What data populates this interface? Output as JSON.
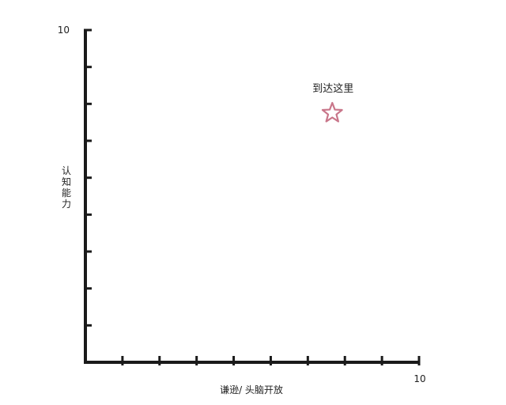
{
  "chart_data": {
    "type": "scatter",
    "xlabel": "谦逊/ 头脑开放",
    "ylabel": "认知能力",
    "xlim": [
      0,
      10
    ],
    "ylim": [
      0,
      10
    ],
    "x_tick_labels": {
      "max": "10"
    },
    "y_tick_labels": {
      "max": "10"
    },
    "points": [
      {
        "x": 7.4,
        "y": 7.5,
        "marker": "star",
        "label": "到达这里"
      }
    ],
    "grid": false,
    "colors": {
      "axis": "#1a1a1a",
      "marker": "#c9768a"
    }
  }
}
